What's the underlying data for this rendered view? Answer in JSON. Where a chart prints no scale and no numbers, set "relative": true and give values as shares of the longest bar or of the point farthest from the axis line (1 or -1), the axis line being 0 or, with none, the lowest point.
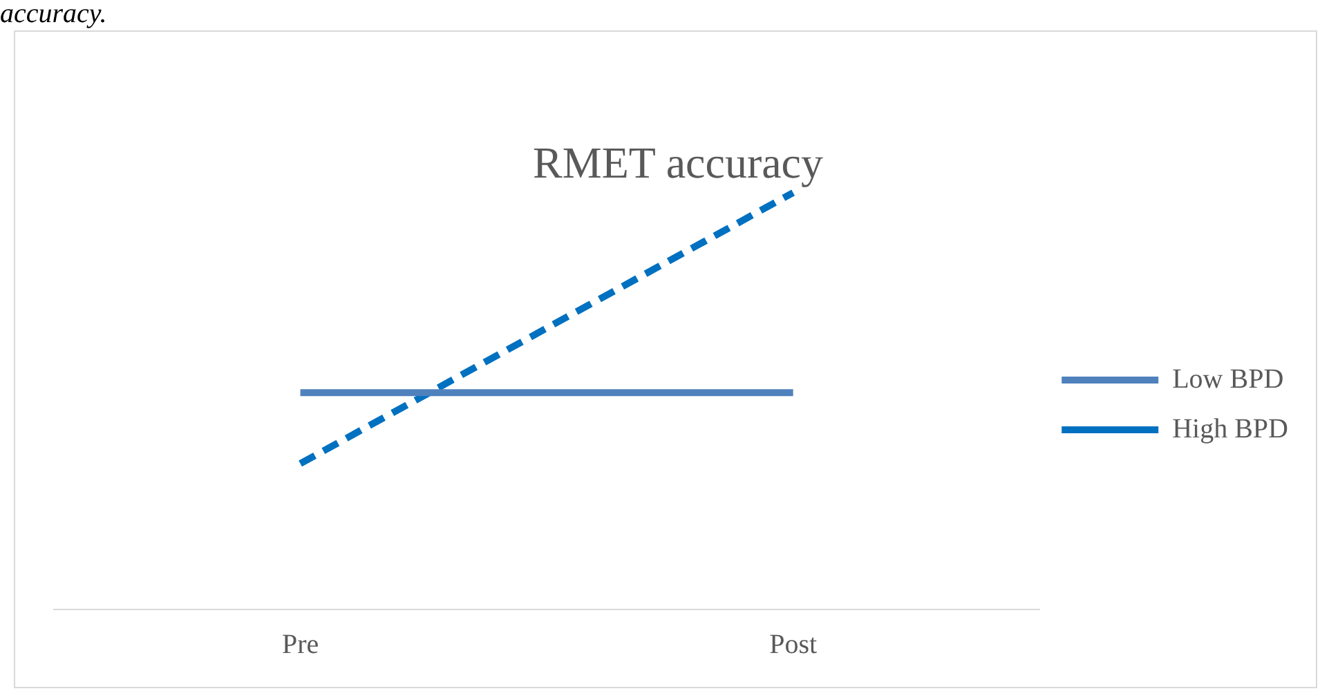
{
  "chart_data": {
    "type": "line",
    "title": "RMET accuracy",
    "annotations": [
      "accuracy."
    ],
    "categories": [
      "Pre",
      "Post"
    ],
    "relative": true,
    "legend": "right",
    "marker": "none",
    "grid": false,
    "series": [
      {
        "name": "Low BPD",
        "color": "#4f81bd",
        "values": [
          0.52,
          0.52
        ],
        "line_style": "solid"
      },
      {
        "name": "High BPD",
        "color": "#0070c0",
        "values": [
          0.35,
          1
        ],
        "line_style": "dashed"
      }
    ]
  }
}
